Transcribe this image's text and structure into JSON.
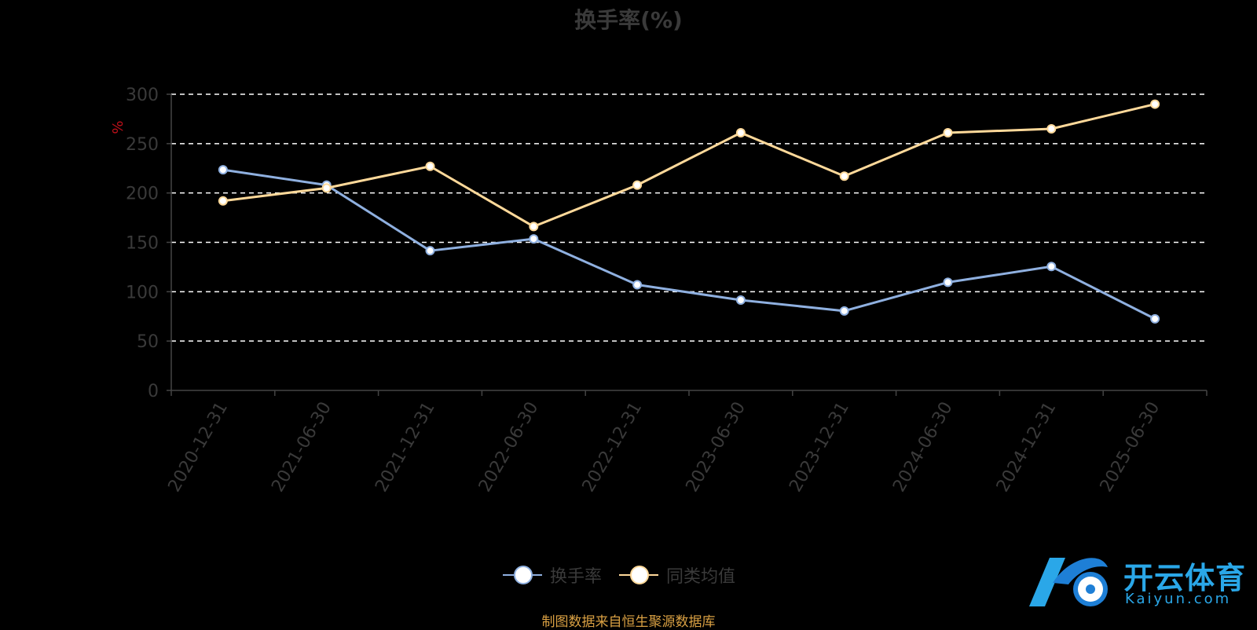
{
  "chart_data": {
    "type": "line",
    "title": "换手率(%)",
    "ylabel": "%",
    "ylim": [
      0,
      300
    ],
    "yticks": [
      0,
      50,
      100,
      150,
      200,
      250,
      300
    ],
    "categories": [
      "2020-12-31",
      "2021-06-30",
      "2021-12-31",
      "2022-06-30",
      "2022-12-31",
      "2023-06-30",
      "2023-12-31",
      "2024-06-30",
      "2024-12-31",
      "2025-06-30"
    ],
    "series": [
      {
        "name": "换手率",
        "color": "#8fb0e0",
        "values": [
          223.5,
          208.0,
          141.5,
          153.5,
          107.0,
          91.5,
          80.5,
          109.5,
          125.5,
          72.5
        ]
      },
      {
        "name": "同类均值",
        "color": "#ffd99a",
        "values": [
          192.0,
          205.0,
          227.0,
          166.0,
          208.0,
          261.0,
          217.0,
          261.0,
          265.0,
          290.0
        ]
      }
    ],
    "grid": true,
    "legend_position": "bottom-center"
  },
  "source_text": "制图数据来自恒生聚源数据库",
  "watermark": {
    "brand": "开云体育",
    "domain": "Kaiyun.com"
  }
}
